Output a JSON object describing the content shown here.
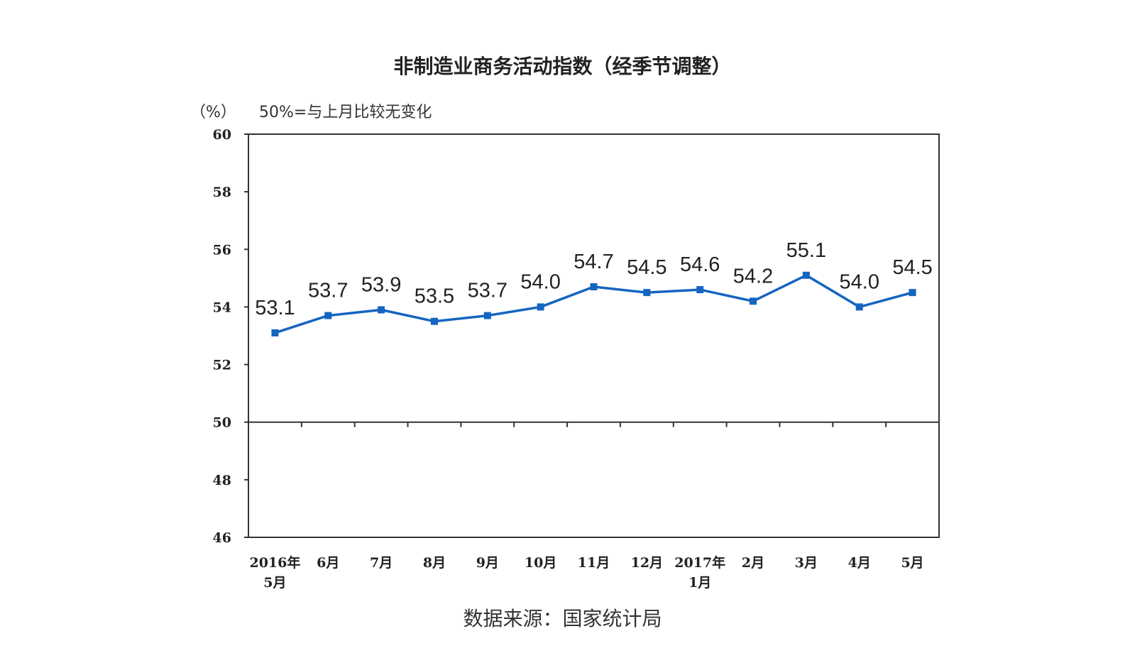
{
  "header": {
    "title": "非制造业商务活动指数（经季节调整）",
    "unit": "（%）",
    "note": "50%=与上月比较无变化"
  },
  "footer": {
    "source": "数据来源：国家统计局"
  },
  "chart_data": {
    "type": "line",
    "title": "非制造业商务活动指数（经季节调整）",
    "ylabel": "（%）",
    "xlabel": "",
    "ylim": [
      46,
      60
    ],
    "yticks": [
      60,
      58,
      56,
      54,
      52,
      50,
      48,
      46
    ],
    "reference_line": 50,
    "categories": [
      [
        "2016年",
        "5月"
      ],
      [
        "6月"
      ],
      [
        "7月"
      ],
      [
        "8月"
      ],
      [
        "9月"
      ],
      [
        "10月"
      ],
      [
        "11月"
      ],
      [
        "12月"
      ],
      [
        "2017年",
        "1月"
      ],
      [
        "2月"
      ],
      [
        "3月"
      ],
      [
        "4月"
      ],
      [
        "5月"
      ]
    ],
    "series": [
      {
        "values": [
          53.1,
          53.7,
          53.9,
          53.5,
          53.7,
          54.0,
          54.7,
          54.5,
          54.6,
          54.2,
          55.1,
          54.0,
          54.5
        ],
        "labels": [
          "53.1",
          "53.7",
          "53.9",
          "53.5",
          "53.7",
          "54.0",
          "54.7",
          "54.5",
          "54.6",
          "54.2",
          "55.1",
          "54.0",
          "54.5"
        ],
        "color": "#1565c0",
        "marker": "square"
      }
    ],
    "grid": false,
    "legend": "none"
  }
}
